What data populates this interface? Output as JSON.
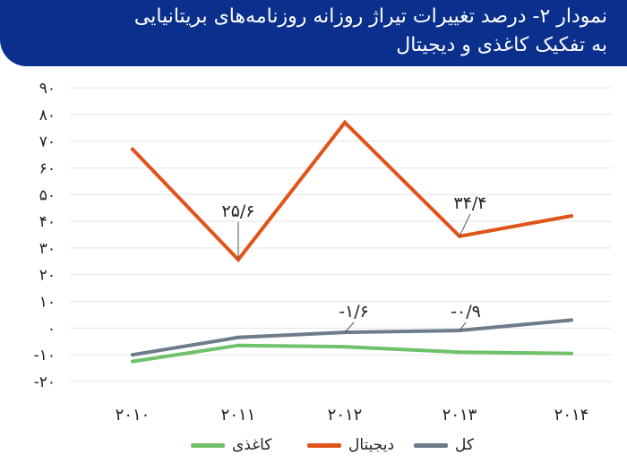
{
  "title": {
    "line1": "نمودار ۲- درصد تغییرات تیراژ روزانه روزنامه‌های بریتانیایی",
    "line2": "به تفکیک کاغذی و دیجیتال"
  },
  "chart_data": {
    "type": "line",
    "x": [
      "۲۰۱۰",
      "۲۰۱۱",
      "۲۰۱۲",
      "۲۰۱۳",
      "۲۰۱۴"
    ],
    "ylim": [
      -20,
      90
    ],
    "yticks": [
      90,
      80,
      70,
      60,
      50,
      40,
      30,
      20,
      10,
      0,
      -10,
      -20
    ],
    "ytick_labels": [
      "۹۰",
      "۸۰",
      "۷۰",
      "۶۰",
      "۵۰",
      "۴۰",
      "۳۰",
      "۲۰",
      "۱۰",
      "۰",
      "-۱۰",
      "-۲۰"
    ],
    "grid": true,
    "series": [
      {
        "name": "دیجیتال",
        "color": "#e0531a",
        "values": [
          67,
          25.6,
          77,
          34.4,
          42
        ]
      },
      {
        "name": "کل",
        "color": "#6e7b8a",
        "values": [
          -10,
          -3.5,
          -1.6,
          -0.9,
          3
        ]
      },
      {
        "name": "کاغذی",
        "color": "#6fc16a",
        "values": [
          -12.5,
          -6.5,
          -7,
          -9,
          -9.5
        ]
      }
    ],
    "annotations": [
      {
        "text": "۲۵/۶",
        "series": 0,
        "point": 1
      },
      {
        "text": "۳۴/۴",
        "series": 0,
        "point": 3
      },
      {
        "text": "-۱/۶",
        "series": 1,
        "point": 2
      },
      {
        "text": "-۰/۹",
        "series": 1,
        "point": 3
      }
    ],
    "legend": [
      "کاغذی",
      "دیجیتال",
      "کل"
    ],
    "legend_position": "bottom"
  }
}
